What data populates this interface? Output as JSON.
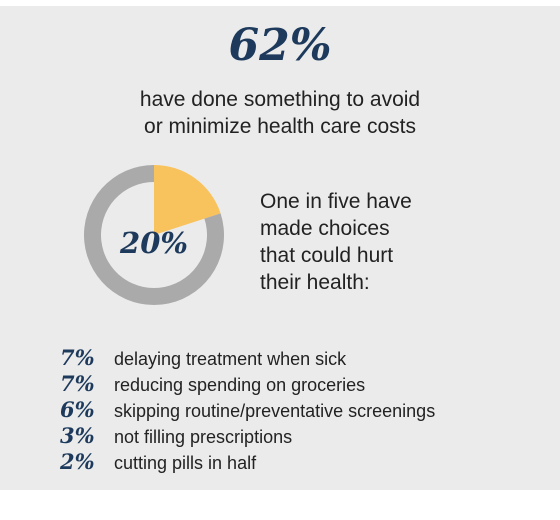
{
  "headline": {
    "value": "62%"
  },
  "subhead": {
    "lines": [
      "have done something to avoid",
      "or minimize health care costs"
    ]
  },
  "chart_data": {
    "type": "pie",
    "title": "",
    "slices": [
      {
        "label": "20%",
        "value": 20,
        "color": "#f8c25c"
      },
      {
        "label": "",
        "value": 80,
        "color": "#aaaaaa"
      }
    ],
    "center_label": "20%"
  },
  "side_text": {
    "lines": [
      "One in five have",
      "made choices",
      "that could hurt",
      "their health:"
    ]
  },
  "breakdown": [
    {
      "value": "7%",
      "label": "delaying treatment when sick"
    },
    {
      "value": "7%",
      "label": "reducing spending on groceries"
    },
    {
      "value": "6%",
      "label": "skipping routine/preventative screenings"
    },
    {
      "value": "3%",
      "label": "not filling prescriptions"
    },
    {
      "value": "2%",
      "label": "cutting pills in half"
    }
  ]
}
